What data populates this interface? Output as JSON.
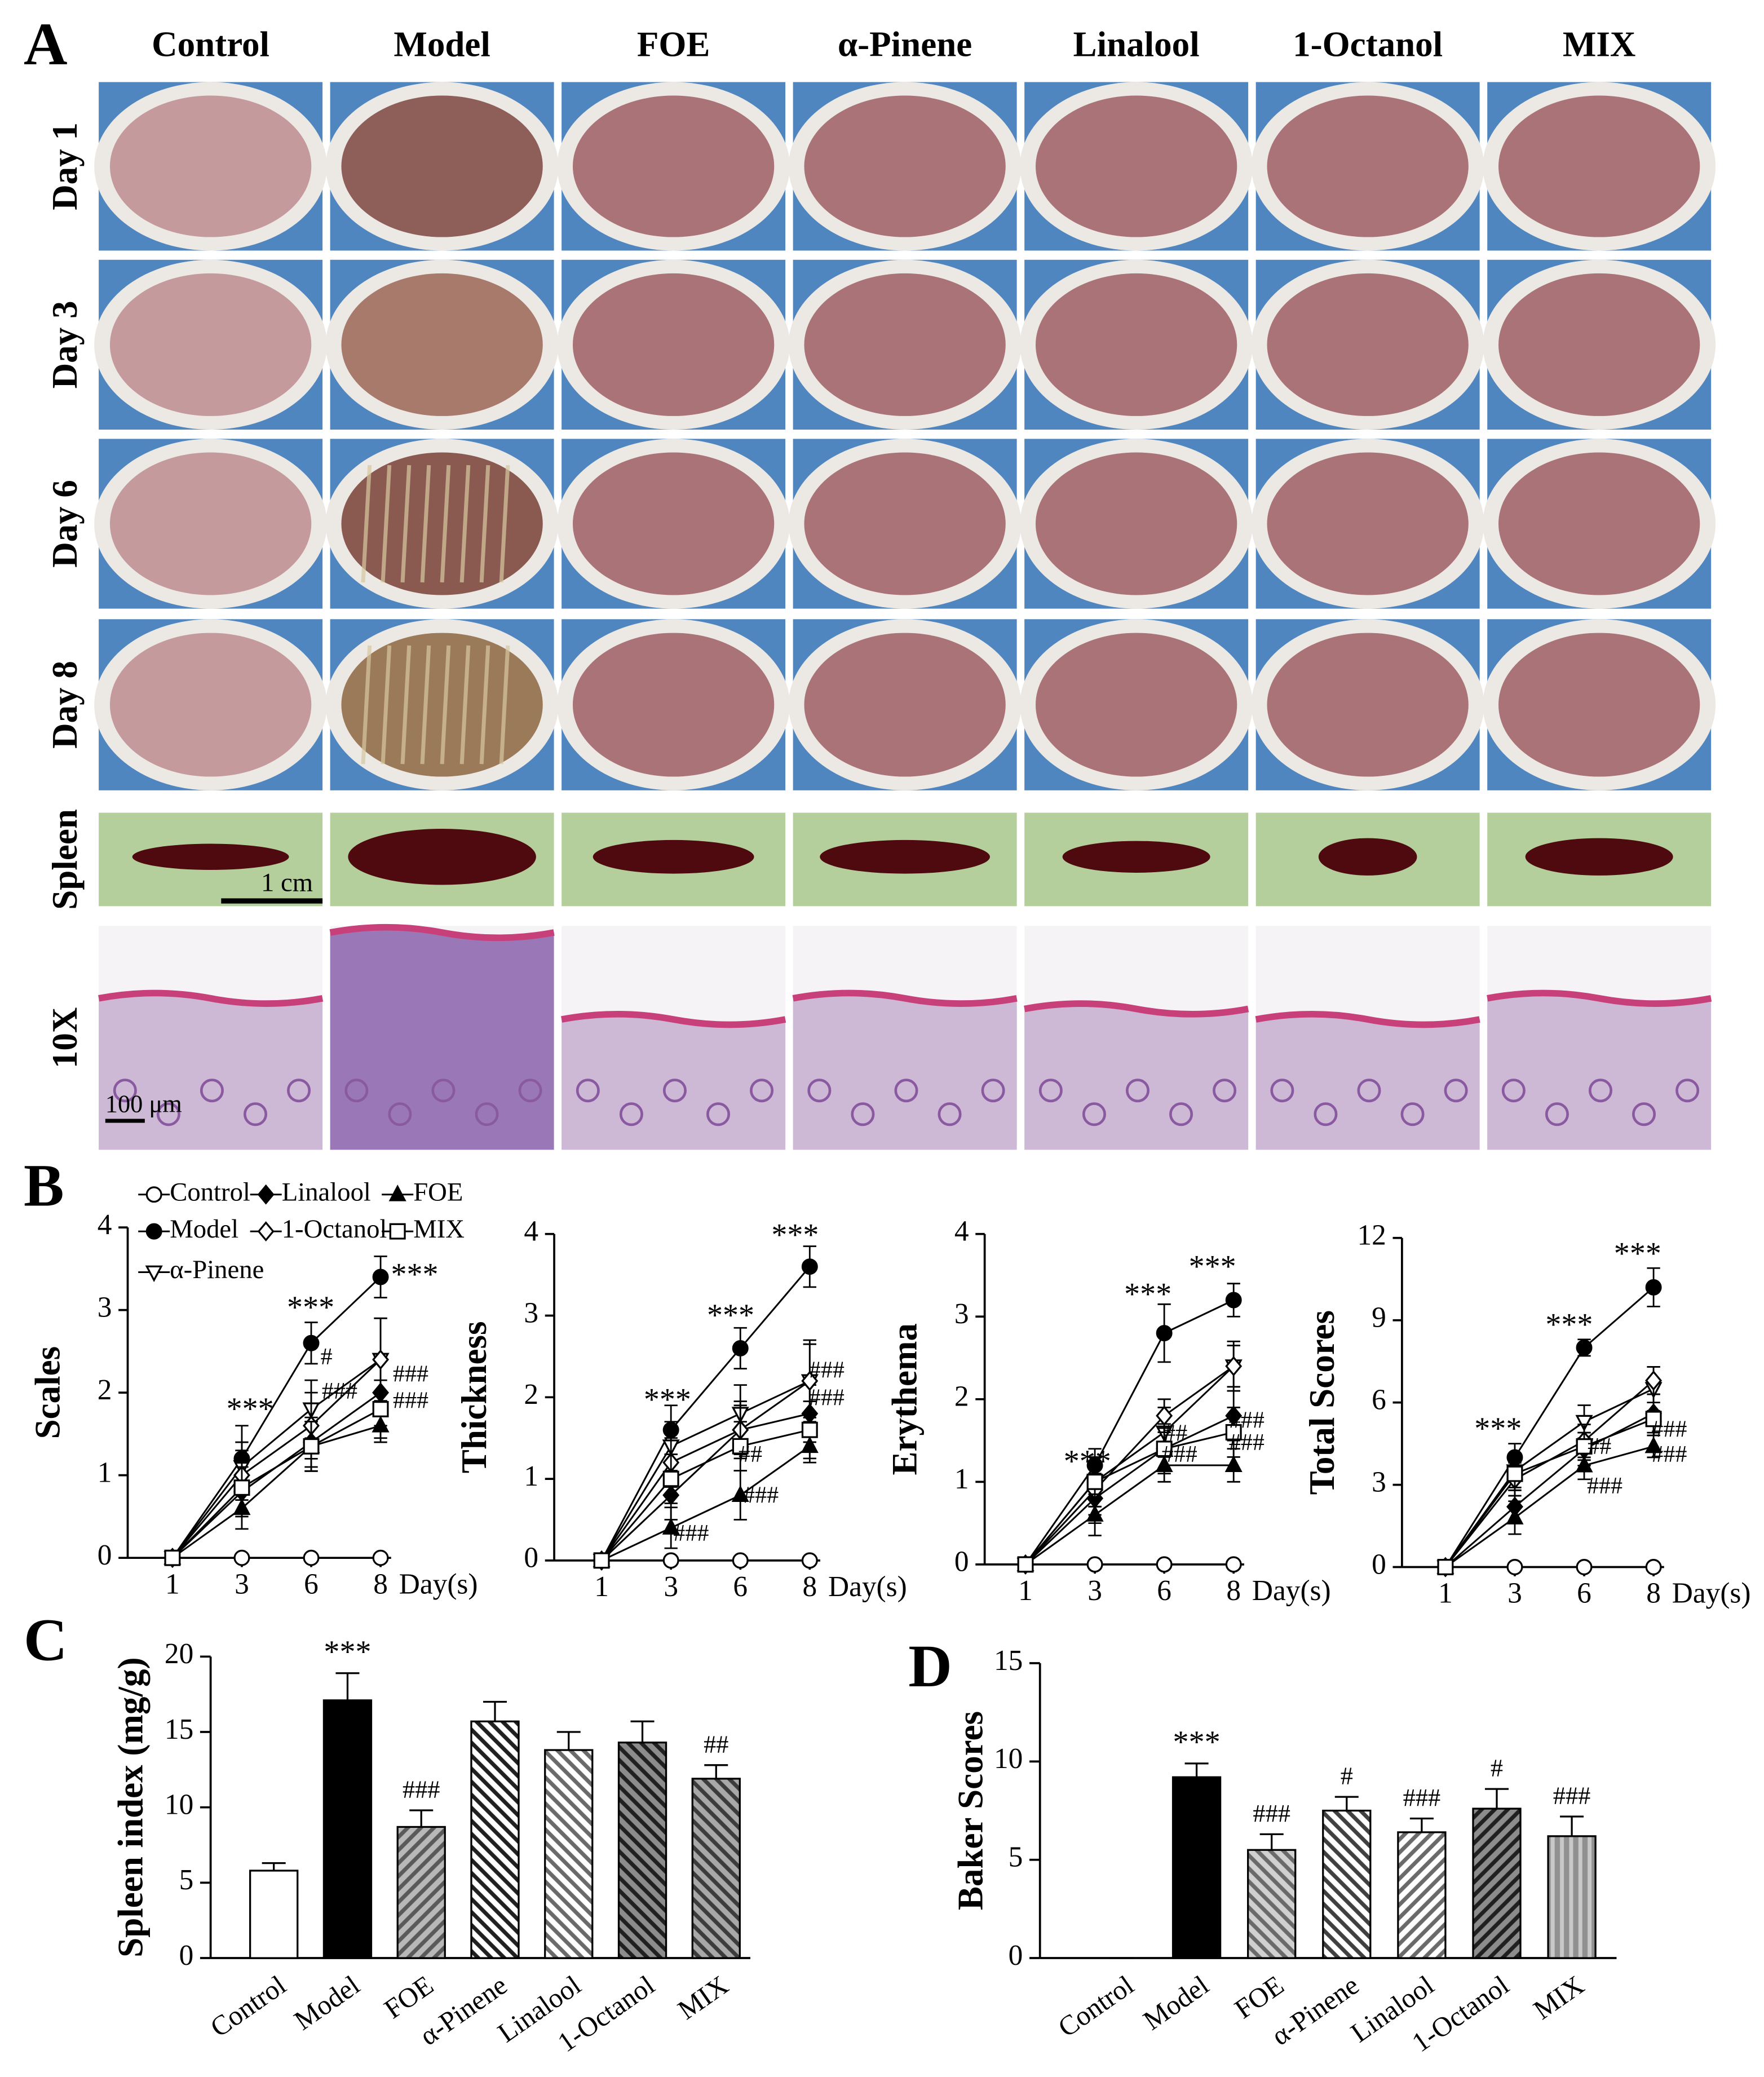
{
  "panel_labels": [
    "A",
    "B",
    "C",
    "D"
  ],
  "photo_grid": {
    "columns": [
      "Control",
      "Model",
      "FOE",
      "α-Pinene",
      "Linalool",
      "1-Octanol",
      "MIX"
    ],
    "rows": [
      "Day 1",
      "Day 3",
      "Day 6",
      "Day 8",
      "Spleen",
      "10X"
    ],
    "scale_bars": [
      "1 cm",
      "100 μm"
    ]
  },
  "chart_data": [
    {
      "type": "line",
      "ylabel": "Scales",
      "xlabel": "Day(s)",
      "categories": [
        "1",
        "3",
        "6",
        "8"
      ],
      "ylim": [
        0,
        4
      ],
      "yticks": [
        0,
        1,
        2,
        3,
        4
      ],
      "annotations": [
        "***",
        "***",
        "***",
        "#",
        "###",
        "###",
        "###"
      ],
      "series": [
        {
          "name": "Control",
          "marker": "circle-open",
          "values": [
            0,
            0,
            0,
            0
          ],
          "errors": [
            0,
            0,
            0,
            0
          ]
        },
        {
          "name": "Model",
          "marker": "circle",
          "values": [
            0,
            1.2,
            2.6,
            3.4
          ],
          "errors": [
            0,
            0.4,
            0.25,
            0.25
          ]
        },
        {
          "name": "α-Pinene",
          "marker": "triangle-down-open",
          "values": [
            0,
            1.1,
            1.8,
            2.4
          ],
          "errors": [
            0,
            0.3,
            0.35,
            0.5
          ]
        },
        {
          "name": "Linalool",
          "marker": "diamond",
          "values": [
            0,
            0.8,
            1.4,
            2.0
          ],
          "errors": [
            0,
            0.3,
            0.3,
            0.4
          ]
        },
        {
          "name": "1-Octanol",
          "marker": "diamond-open",
          "values": [
            0,
            1.0,
            1.6,
            2.4
          ],
          "errors": [
            0,
            0.3,
            0.4,
            0.5
          ]
        },
        {
          "name": "FOE",
          "marker": "triangle",
          "values": [
            0,
            0.6,
            1.35,
            1.6
          ],
          "errors": [
            0,
            0.25,
            0.3,
            0.2
          ]
        },
        {
          "name": "MIX",
          "marker": "square-open",
          "values": [
            0,
            0.85,
            1.35,
            1.8
          ],
          "errors": [
            0,
            0.3,
            0.3,
            0.35
          ]
        }
      ]
    },
    {
      "type": "line",
      "ylabel": "Thickness",
      "xlabel": "Day(s)",
      "categories": [
        "1",
        "3",
        "6",
        "8"
      ],
      "ylim": [
        0,
        4
      ],
      "yticks": [
        0,
        1,
        2,
        3,
        4
      ],
      "annotations": [
        "***",
        "***",
        "***",
        "###",
        "###",
        "##",
        "###",
        "###"
      ],
      "series": [
        {
          "marker": "circle-open",
          "values": [
            0,
            0,
            0,
            0
          ],
          "errors": [
            0,
            0,
            0,
            0
          ]
        },
        {
          "marker": "circle",
          "values": [
            0,
            1.6,
            2.6,
            3.6
          ],
          "errors": [
            0,
            0.3,
            0.25,
            0.25
          ]
        },
        {
          "marker": "triangle-down-open",
          "values": [
            0,
            1.4,
            1.8,
            2.2
          ],
          "errors": [
            0,
            0.3,
            0.35,
            0.45
          ]
        },
        {
          "marker": "diamond",
          "values": [
            0,
            0.8,
            1.6,
            1.8
          ],
          "errors": [
            0,
            0.3,
            0.3,
            0.35
          ]
        },
        {
          "marker": "diamond-open",
          "values": [
            0,
            1.2,
            1.6,
            2.2
          ],
          "errors": [
            0,
            0.3,
            0.35,
            0.5
          ]
        },
        {
          "marker": "triangle",
          "values": [
            0,
            0.4,
            0.8,
            1.4
          ],
          "errors": [
            0,
            0.25,
            0.3,
            0.2
          ]
        },
        {
          "marker": "square-open",
          "values": [
            0,
            1.0,
            1.4,
            1.6
          ],
          "errors": [
            0,
            0.3,
            0.3,
            0.35
          ]
        }
      ]
    },
    {
      "type": "line",
      "ylabel": "Erythema",
      "xlabel": "Day(s)",
      "categories": [
        "1",
        "3",
        "6",
        "8"
      ],
      "ylim": [
        0,
        4
      ],
      "yticks": [
        0,
        1,
        2,
        3,
        4
      ],
      "annotations": [
        "***",
        "***",
        "***",
        "##",
        "###",
        "###",
        "###"
      ],
      "series": [
        {
          "marker": "circle-open",
          "values": [
            0,
            0,
            0,
            0
          ],
          "errors": [
            0,
            0,
            0,
            0
          ]
        },
        {
          "marker": "circle",
          "values": [
            0,
            1.2,
            2.8,
            3.2
          ],
          "errors": [
            0,
            0.2,
            0.35,
            0.2
          ]
        },
        {
          "marker": "triangle-down-open",
          "values": [
            0,
            1.0,
            1.6,
            2.4
          ],
          "errors": [
            0,
            0.3,
            0.3,
            0.3
          ]
        },
        {
          "marker": "diamond",
          "values": [
            0,
            0.8,
            1.4,
            1.8
          ],
          "errors": [
            0,
            0.3,
            0.3,
            0.3
          ]
        },
        {
          "marker": "diamond-open",
          "values": [
            0,
            0.9,
            1.8,
            2.4
          ],
          "errors": [
            0,
            0.3,
            0.2,
            0.25
          ]
        },
        {
          "marker": "triangle",
          "values": [
            0,
            0.6,
            1.2,
            1.2
          ],
          "errors": [
            0,
            0.25,
            0.2,
            0.2
          ]
        },
        {
          "marker": "square-open",
          "values": [
            0,
            1.0,
            1.4,
            1.6
          ],
          "errors": [
            0,
            0.3,
            0.25,
            0.3
          ]
        }
      ]
    },
    {
      "type": "line",
      "ylabel": "Total Scores",
      "xlabel": "Day(s)",
      "categories": [
        "1",
        "3",
        "6",
        "8"
      ],
      "ylim": [
        0,
        12
      ],
      "yticks": [
        0,
        3,
        6,
        9,
        12
      ],
      "annotations": [
        "***",
        "***",
        "***",
        "##",
        "###",
        "###",
        "###"
      ],
      "series": [
        {
          "marker": "circle-open",
          "values": [
            0,
            0,
            0,
            0
          ],
          "errors": [
            0,
            0,
            0,
            0
          ]
        },
        {
          "marker": "circle",
          "values": [
            0,
            4.0,
            8.0,
            10.2
          ],
          "errors": [
            0,
            0.5,
            0.3,
            0.7
          ]
        },
        {
          "marker": "triangle-down-open",
          "values": [
            0,
            3.5,
            5.3,
            6.5
          ],
          "errors": [
            0,
            0.6,
            0.6,
            0.8
          ]
        },
        {
          "marker": "diamond",
          "values": [
            0,
            2.2,
            4.3,
            5.6
          ],
          "errors": [
            0,
            0.6,
            0.6,
            0.7
          ]
        },
        {
          "marker": "diamond-open",
          "values": [
            0,
            3.2,
            4.6,
            6.8
          ],
          "errors": [
            0,
            0.6,
            0.6,
            0.5
          ]
        },
        {
          "marker": "triangle",
          "values": [
            0,
            1.8,
            3.7,
            4.4
          ],
          "errors": [
            0,
            0.6,
            0.5,
            0.4
          ]
        },
        {
          "marker": "square-open",
          "values": [
            0,
            3.4,
            4.4,
            5.4
          ],
          "errors": [
            0,
            0.6,
            0.5,
            0.6
          ]
        }
      ]
    },
    {
      "type": "bar",
      "ylabel": "Spleen index (mg/g)",
      "categories": [
        "Control",
        "Model",
        "FOE",
        "α-Pinene",
        "Linalool",
        "1-Octanol",
        "MIX"
      ],
      "values": [
        5.8,
        17.1,
        8.7,
        15.7,
        13.8,
        14.3,
        11.9
      ],
      "errors": [
        0.5,
        1.8,
        1.1,
        1.3,
        1.2,
        1.4,
        0.9
      ],
      "significance": [
        null,
        "***",
        "###",
        null,
        null,
        null,
        "##"
      ],
      "ylim": [
        0,
        20
      ],
      "yticks": [
        0,
        5,
        10,
        15,
        20
      ],
      "colors": [
        "#ffffff",
        "#000000",
        "#b8b8b8",
        "#ffffff",
        "#ffffff",
        "#8c8c8c",
        "#a8a8a8"
      ],
      "hatch": [
        null,
        null,
        "/",
        "\\",
        "\\",
        "\\",
        "\\"
      ],
      "hatch_colors": [
        null,
        null,
        "#5a5a5a",
        "#202020",
        "#6a6a6a",
        "#202020",
        "#3c3c3c"
      ]
    },
    {
      "type": "bar",
      "ylabel": "Baker Scores",
      "categories": [
        "Control",
        "Model",
        "FOE",
        "α-Pinene",
        "Linalool",
        "1-Octanol",
        "MIX"
      ],
      "values": [
        0,
        9.2,
        5.5,
        7.5,
        6.4,
        7.6,
        6.2
      ],
      "errors": [
        0,
        0.7,
        0.8,
        0.7,
        0.7,
        1.0,
        1.0
      ],
      "significance": [
        null,
        "***",
        "###",
        "#",
        "###",
        "#",
        "###"
      ],
      "ylim": [
        0,
        15
      ],
      "yticks": [
        0,
        5,
        10,
        15
      ],
      "colors": [
        "#ffffff",
        "#000000",
        "#d0d0d0",
        "#ffffff",
        "#ffffff",
        "#8c8c8c",
        "#909090"
      ],
      "hatch": [
        null,
        null,
        "\\",
        "\\",
        "/",
        "/",
        "|"
      ],
      "hatch_colors": [
        null,
        null,
        "#6a6a6a",
        "#404040",
        "#6a6a6a",
        "#202020",
        "#c8c8c8"
      ]
    }
  ]
}
